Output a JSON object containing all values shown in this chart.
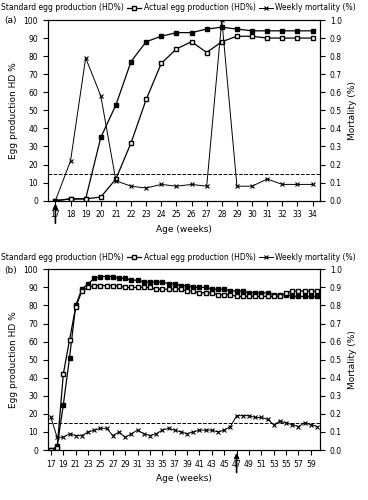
{
  "panel_a": {
    "label": "(a)",
    "weeks": [
      17,
      18,
      19,
      20,
      21,
      22,
      23,
      24,
      25,
      26,
      27,
      28,
      29,
      30,
      31,
      32,
      33,
      34
    ],
    "standard_egg": [
      0,
      1,
      1,
      35,
      53,
      77,
      88,
      91,
      93,
      93,
      95,
      96,
      95,
      94,
      94,
      94,
      94,
      94
    ],
    "actual_egg": [
      0,
      1,
      1,
      2,
      12,
      32,
      56,
      76,
      84,
      88,
      82,
      88,
      91,
      91,
      90,
      90,
      90,
      90
    ],
    "mortality": [
      0.0,
      0.22,
      0.79,
      0.58,
      0.11,
      0.08,
      0.07,
      0.09,
      0.08,
      0.09,
      0.08,
      1.0,
      0.08,
      0.08,
      0.12,
      0.09,
      0.09,
      0.09
    ],
    "arrow_week": 17,
    "xlim": [
      16.5,
      34.5
    ],
    "xticks": [
      17,
      18,
      19,
      20,
      21,
      22,
      23,
      24,
      25,
      26,
      27,
      28,
      29,
      30,
      31,
      32,
      33,
      34
    ],
    "ylim_left": [
      0,
      100
    ],
    "ylim_right": [
      0,
      1.0
    ],
    "yticks_left": [
      0,
      10,
      20,
      30,
      40,
      50,
      60,
      70,
      80,
      90,
      100
    ],
    "yticks_right": [
      0,
      0.1,
      0.2,
      0.3,
      0.4,
      0.5,
      0.6,
      0.7,
      0.8,
      0.9,
      1.0
    ]
  },
  "panel_b": {
    "label": "(b)",
    "weeks": [
      17,
      18,
      19,
      20,
      21,
      22,
      23,
      24,
      25,
      26,
      27,
      28,
      29,
      30,
      31,
      32,
      33,
      34,
      35,
      36,
      37,
      38,
      39,
      40,
      41,
      42,
      43,
      44,
      45,
      46,
      47,
      48,
      49,
      50,
      51,
      52,
      53,
      54,
      55,
      56,
      57,
      58,
      59,
      60
    ],
    "standard_egg": [
      0,
      2,
      25,
      51,
      80,
      89,
      92,
      95,
      96,
      96,
      96,
      95,
      95,
      94,
      94,
      93,
      93,
      93,
      93,
      92,
      92,
      91,
      91,
      90,
      90,
      90,
      89,
      89,
      89,
      88,
      88,
      88,
      87,
      87,
      87,
      87,
      86,
      86,
      86,
      85,
      85,
      85,
      85,
      85
    ],
    "actual_egg": [
      0,
      1,
      42,
      61,
      79,
      88,
      90,
      91,
      91,
      91,
      91,
      91,
      90,
      90,
      90,
      90,
      90,
      89,
      89,
      89,
      89,
      89,
      88,
      88,
      87,
      87,
      87,
      86,
      86,
      86,
      85,
      85,
      85,
      85,
      85,
      85,
      85,
      85,
      87,
      88,
      88,
      88,
      88,
      88
    ],
    "mortality": [
      0.18,
      0.07,
      0.07,
      0.09,
      0.08,
      0.08,
      0.1,
      0.11,
      0.12,
      0.12,
      0.08,
      0.1,
      0.07,
      0.09,
      0.11,
      0.09,
      0.08,
      0.09,
      0.11,
      0.12,
      0.11,
      0.1,
      0.09,
      0.1,
      0.11,
      0.11,
      0.11,
      0.1,
      0.11,
      0.13,
      0.19,
      0.19,
      0.19,
      0.18,
      0.18,
      0.17,
      0.14,
      0.16,
      0.15,
      0.14,
      0.13,
      0.15,
      0.14,
      0.13
    ],
    "arrow_week": 47,
    "xlim": [
      16.5,
      60.5
    ],
    "xticks": [
      17,
      19,
      21,
      23,
      25,
      27,
      29,
      31,
      33,
      35,
      37,
      39,
      41,
      43,
      45,
      47,
      49,
      51,
      53,
      55,
      57,
      59
    ],
    "ylim_left": [
      0,
      100
    ],
    "ylim_right": [
      0,
      1.0
    ],
    "yticks_left": [
      0,
      10,
      20,
      30,
      40,
      50,
      60,
      70,
      80,
      90,
      100
    ],
    "yticks_right": [
      0,
      0.1,
      0.2,
      0.3,
      0.4,
      0.5,
      0.6,
      0.7,
      0.8,
      0.9,
      1.0
    ]
  },
  "legend_labels": [
    "Standard egg production (HD%)",
    "Actual egg production (HD%)",
    "Weekly mortality (%)"
  ],
  "ylabel_left": "Egg production HD %",
  "ylabel_right": "Mortality (%)",
  "xlabel": "Age (weeks)",
  "threshold_value": 0.15,
  "fontsize": 6.5,
  "legend_fontsize": 5.5,
  "tick_fontsize": 5.5
}
